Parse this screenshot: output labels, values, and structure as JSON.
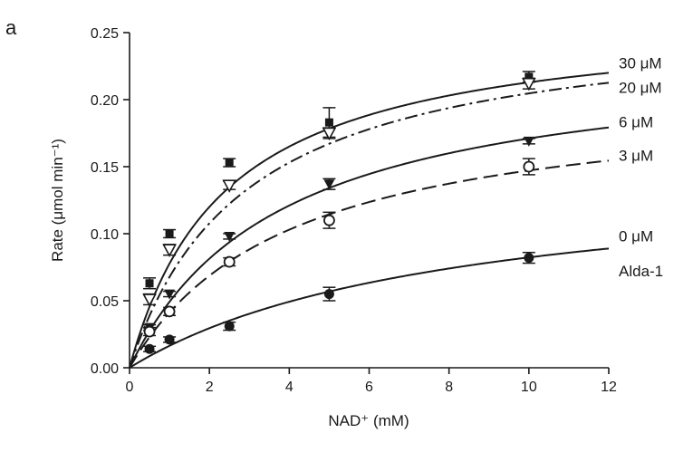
{
  "panel_label": "a",
  "chart_data": {
    "type": "scatter",
    "xlabel": "NAD⁺ (mM)",
    "ylabel": "Rate (μmol min⁻¹)",
    "xlim": [
      0,
      12
    ],
    "ylim": [
      0,
      0.25
    ],
    "x_ticks": [
      0,
      2,
      4,
      6,
      8,
      10,
      12
    ],
    "x_tick_labels": [
      "0",
      "2",
      "4",
      "6",
      "8",
      "10",
      "12"
    ],
    "y_ticks": [
      0,
      0.05,
      0.1,
      0.15,
      0.2,
      0.25
    ],
    "y_tick_labels": [
      "0.00",
      "0.05",
      "0.10",
      "0.15",
      "0.20",
      "0.25"
    ],
    "grid": false,
    "legend": "none",
    "annotation_lines": [
      "Alda-1"
    ],
    "series": [
      {
        "name": "30 μM",
        "marker": "square",
        "line": "solid",
        "fit": {
          "vmax": 0.264,
          "km": 2.4
        },
        "points": [
          {
            "x": 0.5,
            "y": 0.063,
            "err": 0.004
          },
          {
            "x": 1.0,
            "y": 0.1,
            "err": 0.003
          },
          {
            "x": 2.5,
            "y": 0.153,
            "err": 0.003
          },
          {
            "x": 5.0,
            "y": 0.183,
            "err": 0.011
          },
          {
            "x": 10.0,
            "y": 0.217,
            "err": 0.004
          }
        ]
      },
      {
        "name": "20 μM",
        "marker": "triangle-down-open",
        "line": "dash-dot",
        "fit": {
          "vmax": 0.264,
          "km": 2.9
        },
        "points": [
          {
            "x": 0.5,
            "y": 0.051,
            "err": 0.004
          },
          {
            "x": 1.0,
            "y": 0.088,
            "err": 0.004
          },
          {
            "x": 2.5,
            "y": 0.136,
            "err": 0.003
          },
          {
            "x": 5.0,
            "y": 0.175,
            "err": 0.004
          },
          {
            "x": 10.0,
            "y": 0.212,
            "err": 0.004
          }
        ]
      },
      {
        "name": "6 μM",
        "marker": "triangle-down-filled",
        "line": "solid",
        "fit": {
          "vmax": 0.236,
          "km": 3.8
        },
        "points": [
          {
            "x": 0.5,
            "y": 0.03,
            "err": 0.002
          },
          {
            "x": 1.0,
            "y": 0.055,
            "err": 0.002
          },
          {
            "x": 2.5,
            "y": 0.098,
            "err": 0.002
          },
          {
            "x": 5.0,
            "y": 0.137,
            "err": 0.004
          },
          {
            "x": 10.0,
            "y": 0.169,
            "err": 0.002
          }
        ]
      },
      {
        "name": "3 μM",
        "marker": "circle-open",
        "line": "dashed",
        "fit": {
          "vmax": 0.206,
          "km": 4.0
        },
        "points": [
          {
            "x": 0.5,
            "y": 0.027,
            "err": 0.003
          },
          {
            "x": 1.0,
            "y": 0.042,
            "err": 0.003
          },
          {
            "x": 2.5,
            "y": 0.079,
            "err": 0.003
          },
          {
            "x": 5.0,
            "y": 0.11,
            "err": 0.006
          },
          {
            "x": 10.0,
            "y": 0.15,
            "err": 0.006
          }
        ]
      },
      {
        "name": "0 μM",
        "marker": "circle-filled",
        "line": "solid",
        "fit": {
          "vmax": 0.149,
          "km": 8.1
        },
        "points": [
          {
            "x": 0.5,
            "y": 0.014,
            "err": 0.002
          },
          {
            "x": 1.0,
            "y": 0.021,
            "err": 0.002
          },
          {
            "x": 2.5,
            "y": 0.031,
            "err": 0.003
          },
          {
            "x": 5.0,
            "y": 0.055,
            "err": 0.005
          },
          {
            "x": 10.0,
            "y": 0.082,
            "err": 0.004
          }
        ]
      }
    ]
  }
}
